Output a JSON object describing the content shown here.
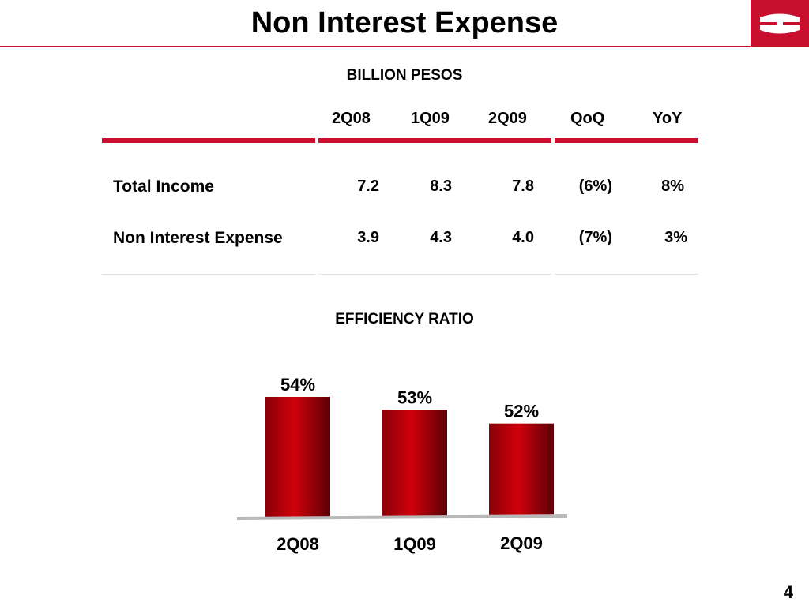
{
  "title": "Non Interest Expense",
  "page_number": "4",
  "table": {
    "caption": "BILLION PESOS",
    "columns": [
      "2Q08",
      "1Q09",
      "2Q09",
      "QoQ",
      "YoY"
    ],
    "rows": [
      {
        "label": "Total Income",
        "values": [
          "7.2",
          "8.3",
          "7.8",
          "(6%)",
          "8%"
        ]
      },
      {
        "label": "Non Interest Expense",
        "values": [
          "3.9",
          "4.3",
          "4.0",
          "(7%)",
          "3%"
        ]
      }
    ]
  },
  "chart_data": {
    "type": "bar",
    "title": "EFFICIENCY RATIO",
    "categories": [
      "2Q08",
      "1Q09",
      "2Q09"
    ],
    "values": [
      54,
      53,
      52
    ],
    "value_labels": [
      "54%",
      "53%",
      "52%"
    ],
    "bar_color": "#c8102e",
    "grid": false
  },
  "colors": {
    "accent": "#c8102e"
  }
}
